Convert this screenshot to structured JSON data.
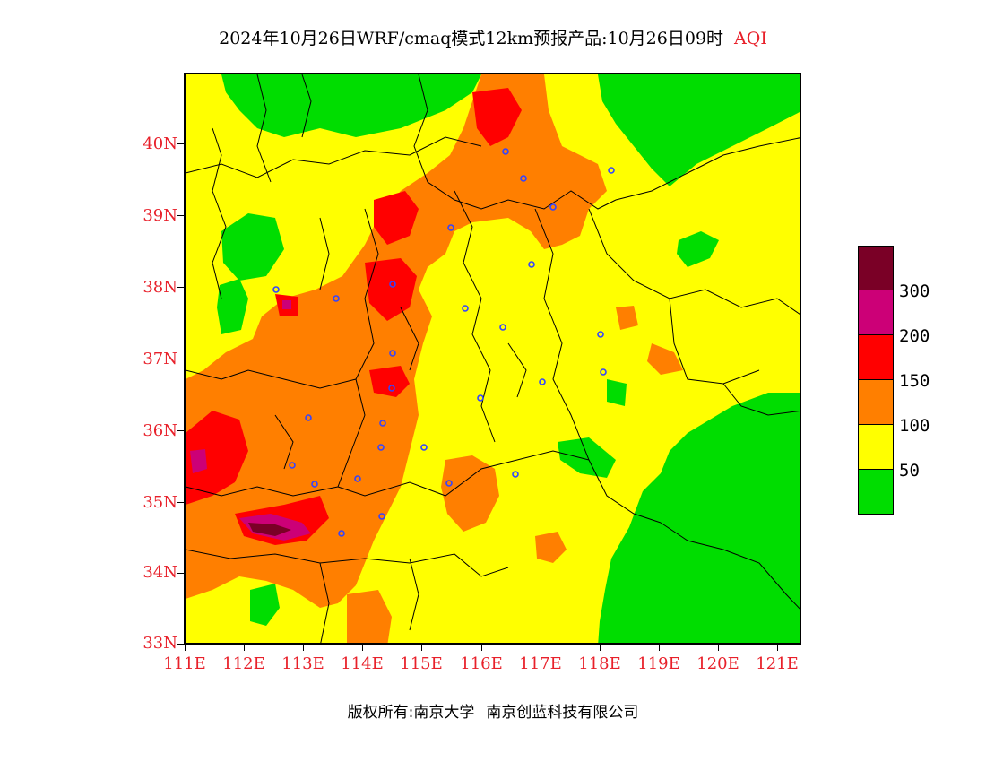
{
  "title": {
    "main": "2024年10月26日WRF/cmaq模式12km预报产品:10月26日09时",
    "variable": "AQI"
  },
  "axes": {
    "y_labels": [
      "40N",
      "39N",
      "38N",
      "37N",
      "36N",
      "35N",
      "34N",
      "33N"
    ],
    "x_labels": [
      "111E",
      "112E",
      "113E",
      "114E",
      "115E",
      "116E",
      "117E",
      "118E",
      "119E",
      "120E",
      "121E"
    ],
    "label_color": "#e8202a",
    "lon_range": [
      111,
      121.4
    ],
    "lat_range": [
      33,
      41
    ]
  },
  "legend": {
    "labels": [
      "300",
      "200",
      "150",
      "100",
      "50"
    ],
    "colors": [
      "#7a0026",
      "#cc0077",
      "#ff0000",
      "#ff7f00",
      "#ffff00",
      "#00dd00"
    ]
  },
  "footer": {
    "copyright": "版权所有:南京大学",
    "company": "南京创蓝科技有限公司"
  }
}
